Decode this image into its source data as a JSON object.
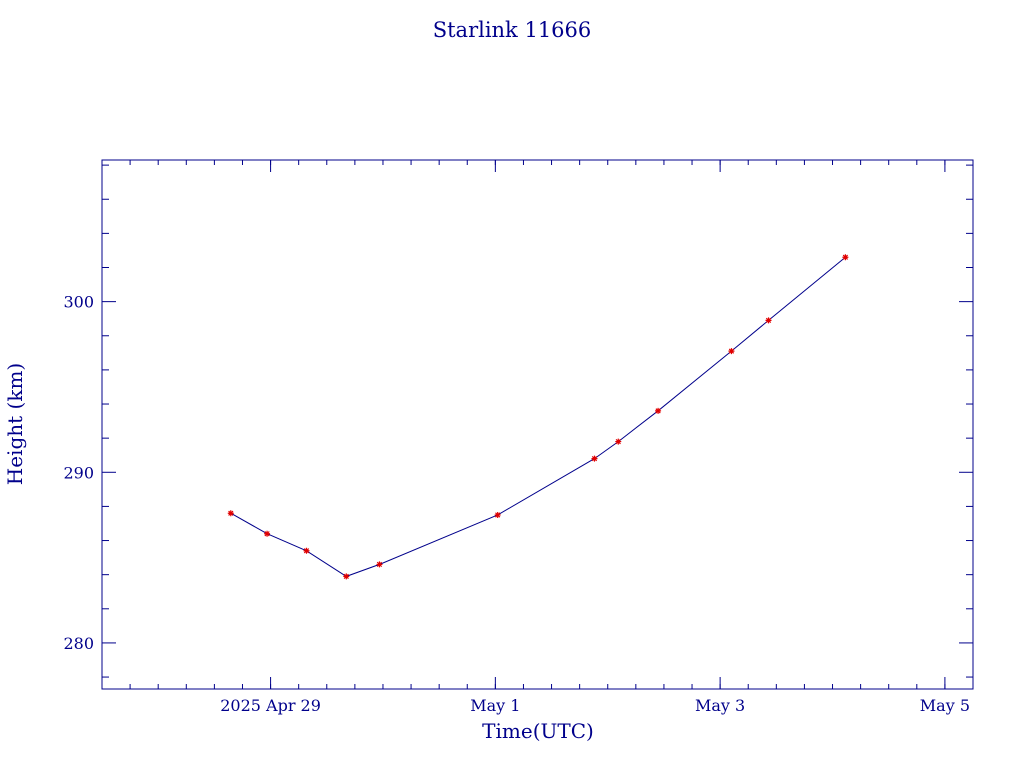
{
  "chart_data": {
    "type": "line",
    "title": "Starlink 11666",
    "xlabel": "Time(UTC)",
    "ylabel": "Height (km)",
    "x_tick_labels": [
      "2025 Apr 29",
      "May  1",
      "May  3",
      "May  5"
    ],
    "y_tick_labels": [
      "280",
      "290",
      "300"
    ],
    "y_ticks": [
      280,
      290,
      300
    ],
    "x_tick_dates": [
      "2025-04-29",
      "2025-05-01",
      "2025-05-03",
      "2025-05-05"
    ],
    "xlim": [
      "2025-04-27T12:00",
      "2025-05-05T06:00"
    ],
    "ylim": [
      277.3,
      308.3
    ],
    "grid": false,
    "series": [
      {
        "line_color": "#00008B",
        "marker_color": "#E00000",
        "points": [
          {
            "x": "2025-04-28T15:30",
            "y": 287.6
          },
          {
            "x": "2025-04-28T23:15",
            "y": 286.4
          },
          {
            "x": "2025-04-29T07:40",
            "y": 285.4
          },
          {
            "x": "2025-04-29T16:10",
            "y": 283.9
          },
          {
            "x": "2025-04-29T23:15",
            "y": 284.6
          },
          {
            "x": "2025-05-01T00:30",
            "y": 287.5
          },
          {
            "x": "2025-05-01T21:10",
            "y": 290.8
          },
          {
            "x": "2025-05-02T02:15",
            "y": 291.8
          },
          {
            "x": "2025-05-02T10:45",
            "y": 293.6
          },
          {
            "x": "2025-05-03T02:25",
            "y": 297.1
          },
          {
            "x": "2025-05-03T10:20",
            "y": 298.9
          },
          {
            "x": "2025-05-04T02:45",
            "y": 302.6
          }
        ]
      }
    ]
  }
}
